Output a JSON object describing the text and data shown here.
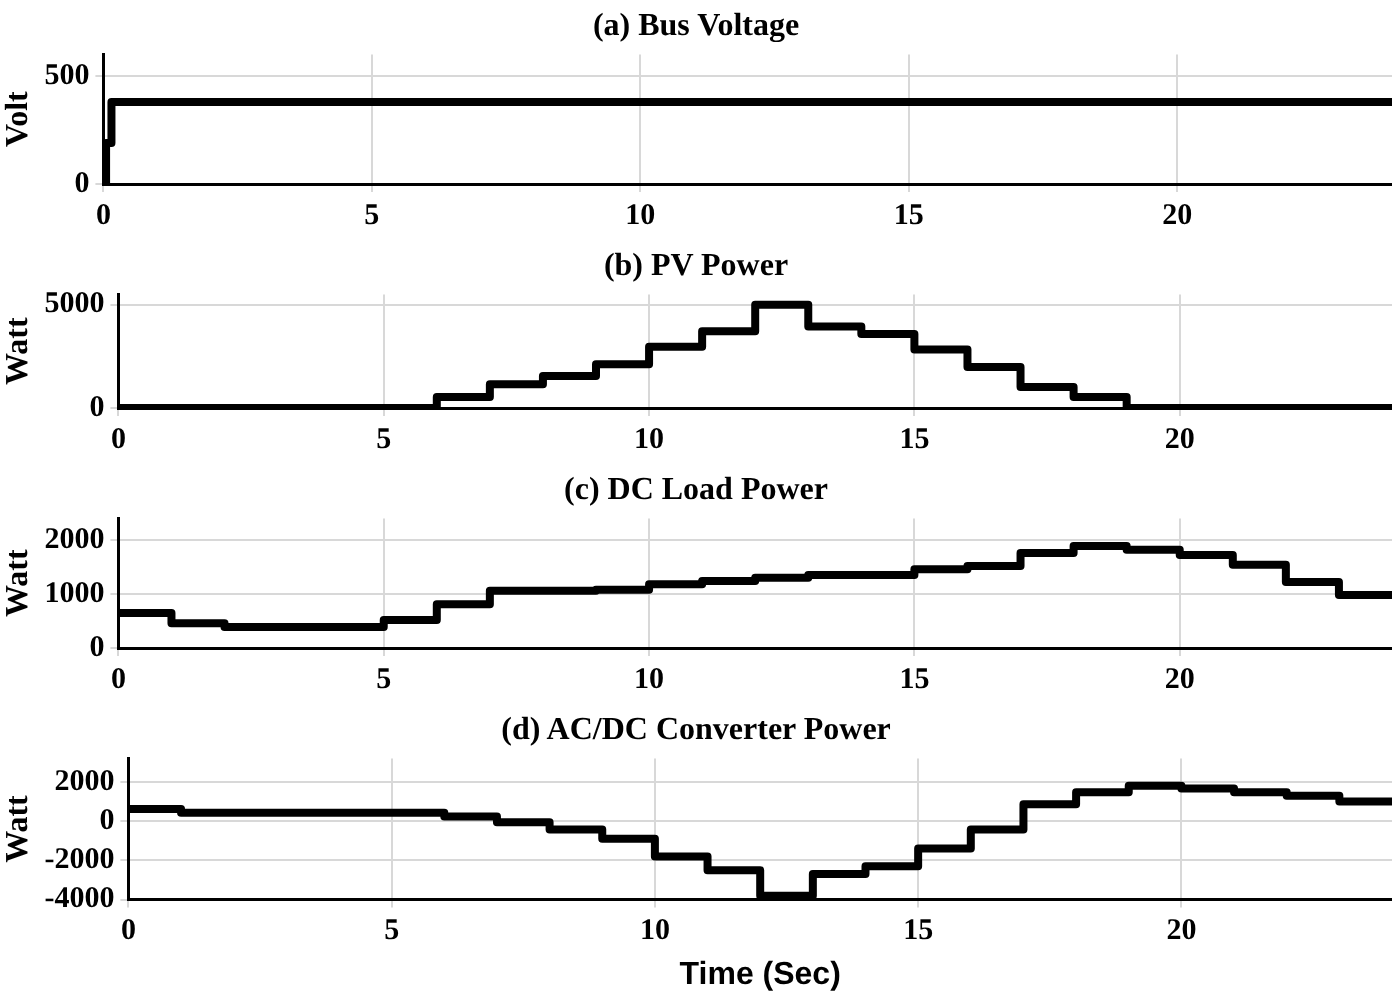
{
  "chart_data": [
    {
      "type": "step",
      "title": "(a) Bus Voltage",
      "ylabel": "Volt",
      "x": [
        0,
        0.05,
        0.15,
        24
      ],
      "values": [
        0,
        190,
        380,
        380
      ],
      "color": "#000000",
      "xlim": [
        0,
        24
      ],
      "xticks": [
        0,
        5,
        10,
        15,
        20
      ],
      "ylim": [
        0,
        600
      ],
      "yticks": [
        0,
        500
      ],
      "grid": true,
      "legend": false
    },
    {
      "type": "step",
      "title": "(b) PV Power",
      "ylabel": "Watt",
      "x": [
        0,
        6,
        7,
        8,
        9,
        10,
        11,
        12,
        13,
        14,
        15,
        16,
        17,
        18,
        19,
        24
      ],
      "values": [
        0,
        530,
        1150,
        1550,
        2120,
        2960,
        3720,
        5000,
        3940,
        3580,
        2830,
        1990,
        1020,
        530,
        0,
        0
      ],
      "color": "#000000",
      "xlim": [
        0,
        24
      ],
      "xticks": [
        0,
        5,
        10,
        15,
        20
      ],
      "ylim": [
        0,
        5500
      ],
      "yticks": [
        0,
        5000
      ],
      "grid": true,
      "legend": false
    },
    {
      "type": "step",
      "title": "(c) DC Load Power",
      "ylabel": "Watt",
      "x": [
        0,
        1,
        2,
        5,
        6,
        7,
        9,
        10,
        11,
        12,
        13,
        15,
        16,
        17,
        18,
        19,
        20,
        21,
        22,
        23,
        24
      ],
      "values": [
        650,
        460,
        390,
        520,
        810,
        1060,
        1080,
        1180,
        1240,
        1300,
        1350,
        1460,
        1520,
        1760,
        1890,
        1820,
        1720,
        1540,
        1220,
        980,
        980
      ],
      "color": "#000000",
      "xlim": [
        0,
        24
      ],
      "xticks": [
        0,
        5,
        10,
        15,
        20
      ],
      "ylim": [
        0,
        2400
      ],
      "yticks": [
        0,
        1000,
        2000
      ],
      "grid": true,
      "legend": false
    },
    {
      "type": "step",
      "title": "(d) AC/DC Converter Power",
      "ylabel": "Watt",
      "xlabel": "Time (Sec)",
      "x": [
        0,
        1,
        6,
        7,
        8,
        9,
        10,
        11,
        12,
        13,
        14,
        15,
        16,
        17,
        18,
        19,
        20,
        21,
        22,
        23,
        24
      ],
      "values": [
        620,
        430,
        240,
        -50,
        -430,
        -900,
        -1800,
        -2500,
        -3800,
        -2700,
        -2300,
        -1400,
        -430,
        860,
        1480,
        1800,
        1670,
        1480,
        1290,
        1000,
        1000
      ],
      "color": "#000000",
      "xlim": [
        0,
        24
      ],
      "xticks": [
        0,
        5,
        10,
        15,
        20
      ],
      "ylim": [
        -4000,
        3200
      ],
      "yticks": [
        -4000,
        -2000,
        0,
        2000
      ],
      "grid": true,
      "legend": false
    }
  ]
}
